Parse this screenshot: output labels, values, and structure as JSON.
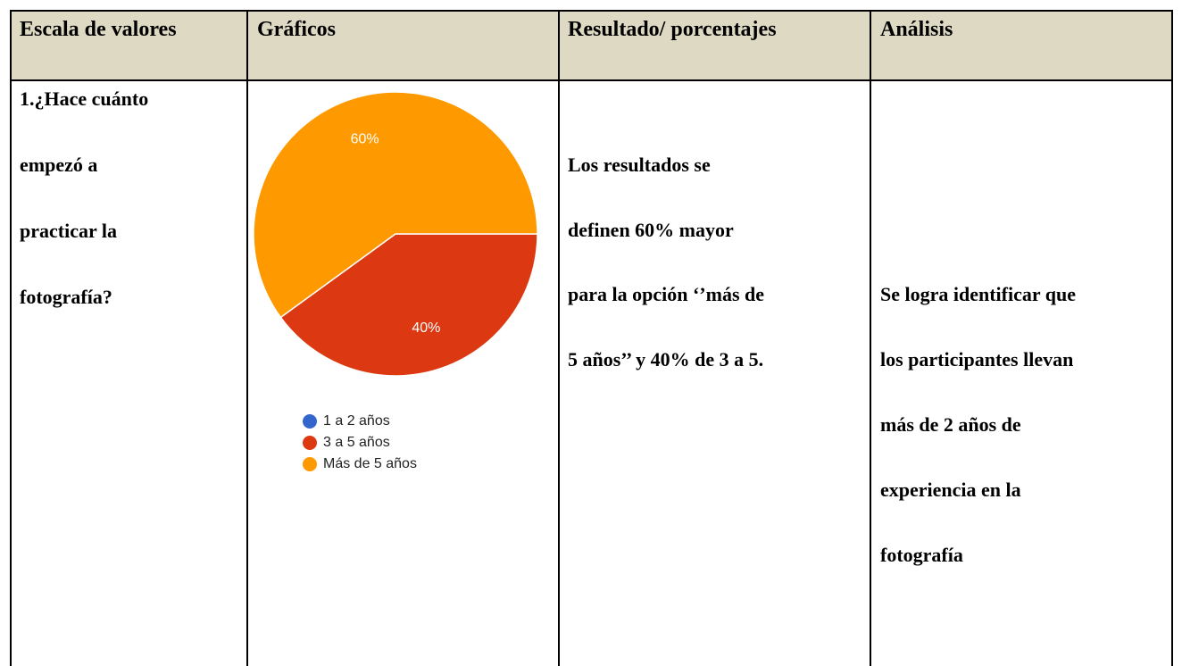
{
  "table": {
    "header": [
      "Escala de valores",
      "Gráficos",
      "Resultado/ porcentajes",
      "Análisis"
    ],
    "question": [
      "1.¿Hace cuánto",
      "empezó a",
      "practicar la",
      "fotografía?"
    ],
    "result": [
      "Los resultados se",
      "definen 60% mayor",
      "para la opción ‘’más de",
      "5 años’’ y 40% de 3 a 5."
    ],
    "analysis": [
      "Se logra identificar que",
      "los participantes llevan",
      "más de 2 años de",
      "experiencia en la",
      "fotografía"
    ]
  },
  "chart_data": {
    "type": "pie",
    "categories": [
      "1 a 2 años",
      "3 a 5 años",
      "Más de 5 años"
    ],
    "values": [
      0,
      40,
      60
    ],
    "value_labels": [
      null,
      "40%",
      "60%"
    ],
    "colors": [
      "#3366cc",
      "#dc3912",
      "#ff9900"
    ]
  }
}
